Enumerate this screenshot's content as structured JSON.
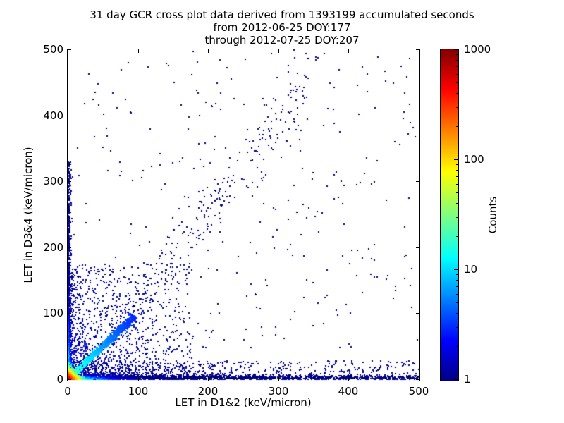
{
  "figure": {
    "title_lines": [
      "31 day GCR cross plot data derived from 1393199 accumulated seconds",
      "from 2012-06-25 DOY:177",
      "through 2012-07-25 DOY:207"
    ]
  },
  "chart_data": {
    "type": "scatter",
    "title": "31 day GCR cross plot data derived from 1393199 accumulated seconds from 2012-06-25 DOY:177 through 2012-07-25 DOY:207",
    "xlabel": "LET in D1&2 (keV/micron)",
    "ylabel": "LET in D3&4 (keV/micron)",
    "xlim": [
      0,
      500
    ],
    "ylim": [
      0,
      500
    ],
    "x_ticks": [
      0,
      100,
      200,
      300,
      400,
      500
    ],
    "y_ticks": [
      0,
      100,
      200,
      300,
      400,
      500
    ],
    "grid": false,
    "legend": "none",
    "colorbar": {
      "label": "Counts",
      "scale": "log",
      "min": 1,
      "max": 1000,
      "ticks": [
        1,
        10,
        100,
        1000
      ],
      "colormap": "jet",
      "stops": [
        {
          "color": "#000084",
          "pos": 0
        },
        {
          "color": "#0000ff",
          "pos": 12
        },
        {
          "color": "#00ffff",
          "pos": 37
        },
        {
          "color": "#ffff00",
          "pos": 63
        },
        {
          "color": "#ff0000",
          "pos": 88
        },
        {
          "color": "#800000",
          "pos": 100
        }
      ]
    },
    "point_color_min": "#00007f",
    "seed": 20120625,
    "description": "2D histogram style cross plot: hot (red-to-cyan) core at origin, cyan diagonal streak y=x out to ~90, dense band along x-axis to 500, band along y-axis to ~330, sparse unit-count dark blue points over lower-left region and a faint diagonal fan rising to ~(350,450)",
    "point_generators": [
      {
        "kind": "uniform",
        "n": 340,
        "xmax": 500,
        "ymax": 500,
        "cbase": 1
      },
      {
        "kind": "box",
        "n": 1800,
        "xmax": 175,
        "ymax": 175,
        "pow": 2.4,
        "cbase": 1,
        "cvar": 2.5
      },
      {
        "kind": "lowwide",
        "n": 650,
        "xmax": 500,
        "pow": 1.7,
        "ymax": 28,
        "cbase": 1
      },
      {
        "kind": "fan",
        "n": 270,
        "x0": 60,
        "x1": 345,
        "slope": 1.28,
        "spread": 26,
        "cbase": 1
      },
      {
        "kind": "bandy",
        "n": 1400,
        "ymax": 330,
        "pow": 2.9,
        "xspread": 2.2,
        "count0": 35,
        "decay": 35,
        "cbase": 1
      },
      {
        "kind": "bandx",
        "n": 2700,
        "xmax": 500,
        "pow": 2.9,
        "yspread": 3.2,
        "count0": 70,
        "decay": 20,
        "cbase": 1
      },
      {
        "kind": "diag",
        "n": 1700,
        "tmax": 95,
        "pow": 1.5,
        "jitter": 1.3,
        "count0": 26,
        "decay": 30,
        "cbase": 2
      },
      {
        "kind": "origin",
        "n": 3600,
        "scale": 4,
        "count0": 1000,
        "decay": 6
      }
    ]
  }
}
